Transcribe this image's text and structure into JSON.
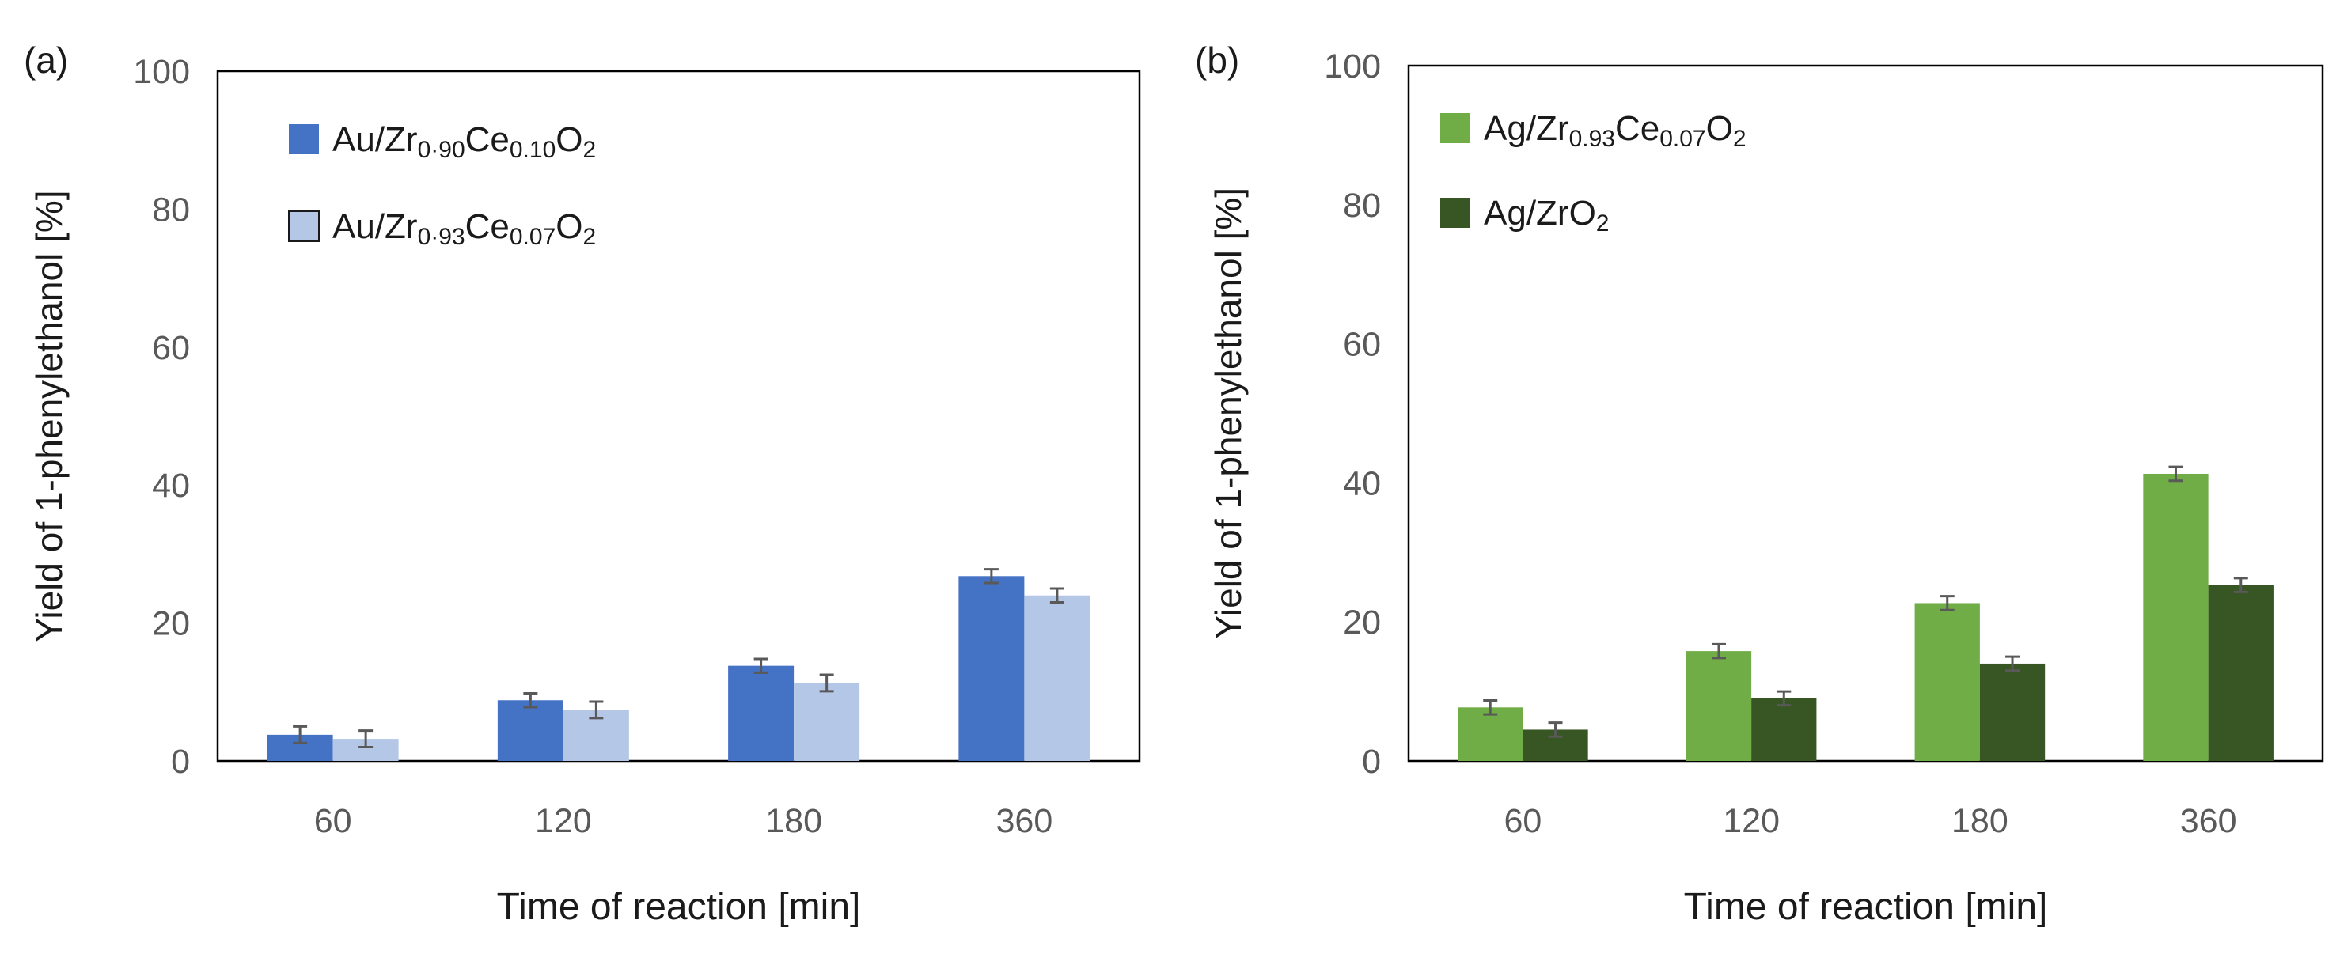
{
  "chart_data": [
    {
      "panel": "(a)",
      "type": "bar",
      "categories": [
        "60",
        "120",
        "180",
        "360"
      ],
      "xlabel": "Time of reaction [min]",
      "ylabel": "Yield of 1-phenylethanol [%]",
      "ylim": [
        0,
        100
      ],
      "yticks": [
        "0",
        "20",
        "40",
        "60",
        "80",
        "100"
      ],
      "legend_position": "top-left",
      "series": [
        {
          "name": "Au/Zr0.90Ce0.10O2",
          "legend": {
            "base": "Au/Zr",
            "sub1": "0·90",
            "mid": "Ce",
            "sub2": "0.10",
            "o": "O",
            "sub3": "2"
          },
          "color": "#4472C4",
          "values": [
            3.8,
            8.8,
            13.8,
            26.8
          ],
          "errors": [
            1.2,
            1.0,
            1.0,
            1.0
          ]
        },
        {
          "name": "Au/Zr0.93Ce0.07O2",
          "legend": {
            "base": "Au/Zr",
            "sub1": "0·93",
            "mid": "Ce",
            "sub2": "0.07",
            "o": "O",
            "sub3": "2"
          },
          "color": "#B4C7E7",
          "values": [
            3.2,
            7.4,
            11.3,
            24.0
          ],
          "errors": [
            1.2,
            1.2,
            1.2,
            1.0
          ]
        }
      ]
    },
    {
      "panel": "(b)",
      "type": "bar",
      "categories": [
        "60",
        "120",
        "180",
        "360"
      ],
      "xlabel": "Time of reaction [min]",
      "ylabel": "Yield of 1-phenylethanol [%]",
      "ylim": [
        0,
        100
      ],
      "yticks": [
        "0",
        "20",
        "40",
        "60",
        "80",
        "100"
      ],
      "legend_position": "top-left",
      "series": [
        {
          "name": "Ag/Zr0.93Ce0.07O2",
          "legend": {
            "base": "Ag/Zr",
            "sub1": "0.93",
            "mid": "Ce",
            "sub2": "0.07",
            "o": "O",
            "sub3": "2"
          },
          "color": "#70AD47",
          "values": [
            7.7,
            15.8,
            22.7,
            41.3
          ],
          "errors": [
            1.0,
            1.0,
            1.0,
            1.0
          ]
        },
        {
          "name": "Ag/ZrO2",
          "legend": {
            "base": "Ag/ZrO",
            "sub1": "2",
            "mid": "",
            "sub2": "",
            "o": "",
            "sub3": ""
          },
          "color": "#375623",
          "values": [
            4.5,
            9.0,
            14.0,
            25.3
          ],
          "errors": [
            1.0,
            1.0,
            1.0,
            1.0
          ]
        }
      ]
    }
  ]
}
